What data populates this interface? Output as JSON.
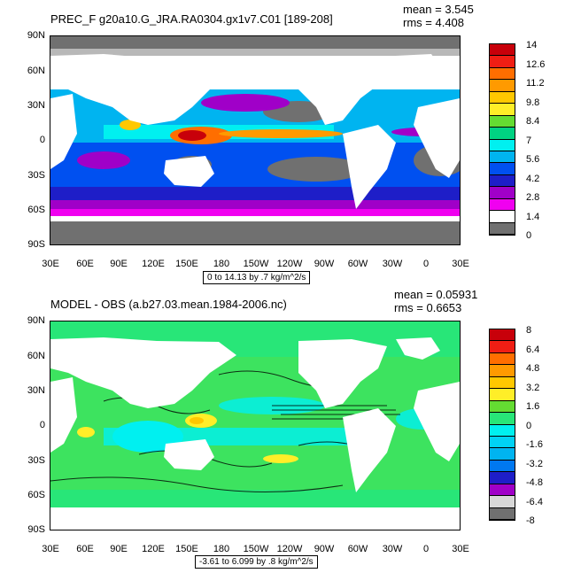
{
  "panels": [
    {
      "id": "top",
      "title": "PREC_F g20a10.G_JRA.RA0304.gx1v7.C01 [189-208]",
      "mean": "mean = 3.545",
      "rms": "rms = 4.408",
      "info": "0 to 14.13 by .7 kg/m^2/s",
      "legend_labels": [
        "14",
        "12.6",
        "11.2",
        "9.8",
        "8.4",
        "7",
        "5.6",
        "4.2",
        "2.8",
        "1.4",
        "0"
      ],
      "legend_colors": [
        "#c8000a",
        "#f01e14",
        "#ff6e00",
        "#ff9a00",
        "#ffc800",
        "#ffee28",
        "#64dc32",
        "#00d282",
        "#00f0f0",
        "#00b4f0",
        "#0050f0",
        "#1e1ec8",
        "#a000c8",
        "#f000f0",
        "#ffffff",
        "#707070"
      ]
    },
    {
      "id": "bottom",
      "title": "MODEL - OBS (a.b27.03.mean.1984-2006.nc)",
      "mean": "mean = 0.05931",
      "rms": "rms = 0.6653",
      "info": "-3.61 to 6.099 by .8 kg/m^2/s",
      "legend_labels": [
        "8",
        "6.4",
        "4.8",
        "3.2",
        "1.6",
        "0",
        "-1.6",
        "-3.2",
        "-4.8",
        "-6.4",
        "-8"
      ],
      "legend_colors": [
        "#c8000a",
        "#f01e14",
        "#ff6e00",
        "#ff9a00",
        "#ffc800",
        "#ffee28",
        "#64dc32",
        "#28e678",
        "#00f0f0",
        "#00d2f5",
        "#00b4f0",
        "#0078f0",
        "#1e1ec8",
        "#a000c8",
        "#d8d8d8",
        "#707070"
      ]
    }
  ],
  "y_ticks": [
    "90N",
    "60N",
    "30N",
    "0",
    "30S",
    "60S",
    "90S"
  ],
  "x_ticks": [
    "30E",
    "60E",
    "90E",
    "120E",
    "150E",
    "180",
    "150W",
    "120W",
    "90W",
    "60W",
    "30W",
    "0",
    "30E"
  ]
}
